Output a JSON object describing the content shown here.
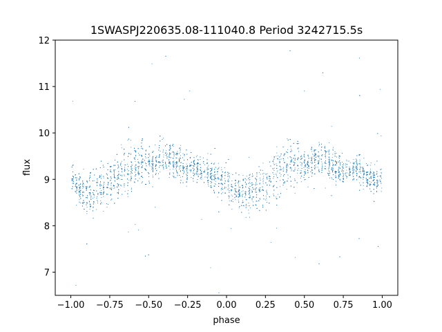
{
  "chart_data": {
    "type": "scatter",
    "title": "1SWASPJ220635.08-111040.8 Period 3242715.5s",
    "xlabel": "phase",
    "ylabel": "flux",
    "xlim": [
      -1.1,
      1.1
    ],
    "ylim": [
      6.5,
      12
    ],
    "xticks": [
      -1.0,
      -0.75,
      -0.5,
      -0.25,
      0.0,
      0.25,
      0.5,
      0.75,
      1.0
    ],
    "xtick_labels": [
      "−1.00",
      "−0.75",
      "−0.50",
      "−0.25",
      "0.00",
      "0.25",
      "0.50",
      "0.75",
      "1.00"
    ],
    "yticks": [
      7,
      8,
      9,
      10,
      11,
      12
    ],
    "ytick_labels": [
      "7",
      "8",
      "9",
      "10",
      "11",
      "12"
    ],
    "grid": false,
    "legend": "none",
    "marker_color": "#1f77b4",
    "series": [
      {
        "x": [
          -1.0,
          -0.95,
          -0.9,
          -0.85,
          -0.8,
          -0.75,
          -0.7,
          -0.65,
          -0.6,
          -0.55,
          -0.5,
          -0.45,
          -0.4,
          -0.35,
          -0.3,
          -0.25,
          -0.2,
          -0.15,
          -0.1,
          -0.05,
          0.0,
          0.05,
          0.1,
          0.15,
          0.2,
          0.25,
          0.3,
          0.35,
          0.4,
          0.45,
          0.5,
          0.55,
          0.6,
          0.65,
          0.7,
          0.75,
          0.8,
          0.85,
          0.9,
          0.95,
          1.0
        ],
        "y": [
          9.1,
          8.8,
          8.7,
          8.75,
          8.8,
          8.9,
          9.1,
          9.2,
          9.3,
          9.4,
          9.3,
          9.4,
          9.5,
          9.4,
          9.3,
          9.2,
          9.25,
          9.2,
          9.1,
          9.0,
          8.9,
          8.8,
          8.7,
          8.75,
          8.8,
          8.9,
          9.1,
          9.2,
          9.3,
          9.4,
          9.3,
          9.4,
          9.5,
          9.4,
          9.3,
          9.2,
          9.25,
          9.2,
          9.1,
          9.0,
          9.1
        ],
        "spread": [
          0.5,
          0.6,
          0.65,
          0.7,
          0.7,
          0.75,
          0.8,
          0.85,
          0.8,
          0.8,
          0.5,
          0.55,
          0.55,
          0.55,
          0.55,
          0.45,
          0.45,
          0.5,
          0.5,
          0.5,
          0.55,
          0.6,
          0.65,
          0.7,
          0.7,
          0.75,
          0.8,
          0.85,
          0.8,
          0.8,
          0.5,
          0.55,
          0.55,
          0.55,
          0.55,
          0.45,
          0.45,
          0.5,
          0.5,
          0.5,
          0.5
        ]
      }
    ]
  }
}
